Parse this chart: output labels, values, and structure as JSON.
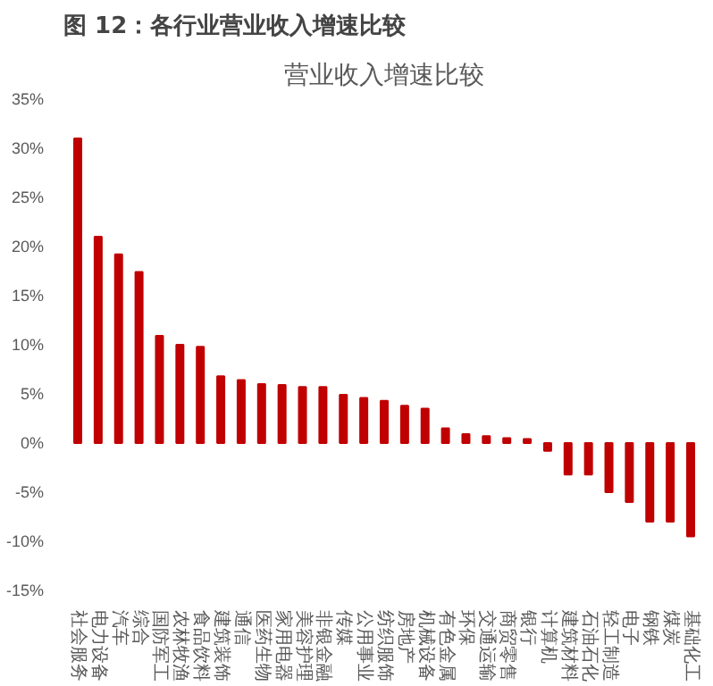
{
  "chart_data": {
    "type": "bar",
    "title": "图 12：各行业营业收入增速比较",
    "subtitle": "营业收入增速比较",
    "categories": [
      "社会服务",
      "电力设备",
      "汽车",
      "综合",
      "国防军工",
      "农林牧渔",
      "食品饮料",
      "建筑装饰",
      "通信",
      "医药生物",
      "家用电器",
      "美容护理",
      "非银金融",
      "传媒",
      "公用事业",
      "纺织服饰",
      "房地产",
      "机械设备",
      "有色金属",
      "环保",
      "交通运输",
      "商贸零售",
      "银行",
      "计算机",
      "建筑材料",
      "石油石化",
      "轻工制造",
      "电子",
      "钢铁",
      "煤炭",
      "基础化工"
    ],
    "values": [
      31,
      21,
      19.2,
      17.4,
      10.9,
      10,
      9.8,
      6.8,
      6.4,
      6,
      5.9,
      5.7,
      5.7,
      4.9,
      4.6,
      4.3,
      3.8,
      3.5,
      1.5,
      0.9,
      0.7,
      0.5,
      0.4,
      -0.8,
      -3.2,
      -3.2,
      -5,
      -6,
      -8,
      -8,
      -9.5
    ],
    "color": "#c00000",
    "ylim": [
      -15,
      35
    ],
    "yticks": [
      {
        "value": -15,
        "label": "-15%"
      },
      {
        "value": -10,
        "label": "-10%"
      },
      {
        "value": -5,
        "label": "-5%"
      },
      {
        "value": 0,
        "label": "0%"
      },
      {
        "value": 5,
        "label": "5%"
      },
      {
        "value": 10,
        "label": "10%"
      },
      {
        "value": 15,
        "label": "15%"
      },
      {
        "value": 20,
        "label": "20%"
      },
      {
        "value": 25,
        "label": "25%"
      },
      {
        "value": 30,
        "label": "30%"
      },
      {
        "value": 35,
        "label": "35%"
      }
    ],
    "grid": false
  }
}
